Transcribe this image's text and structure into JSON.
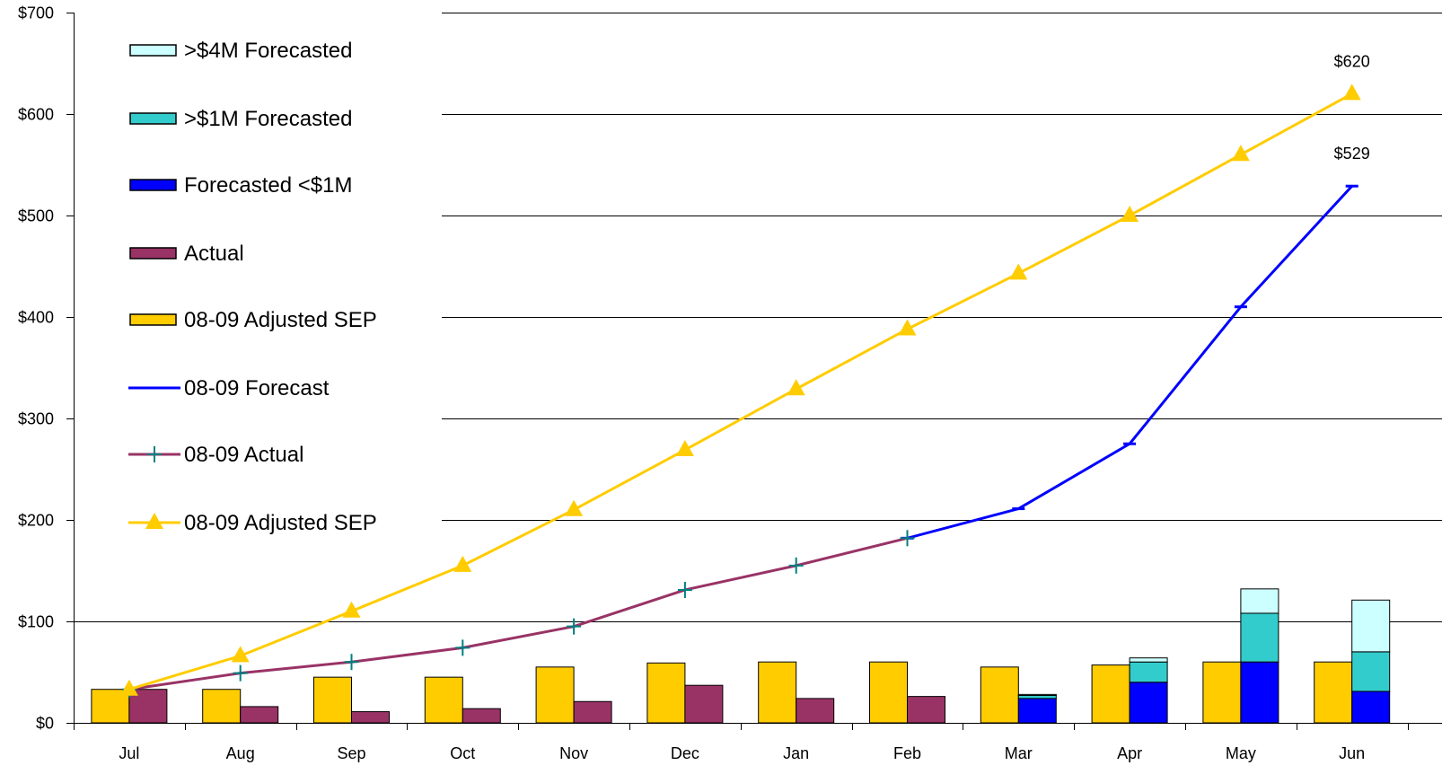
{
  "chart_data": {
    "type": "bar+line",
    "categories": [
      "Jul",
      "Aug",
      "Sep",
      "Oct",
      "Nov",
      "Dec",
      "Jan",
      "Feb",
      "Mar",
      "Apr",
      "May",
      "Jun"
    ],
    "ylim": [
      0,
      700
    ],
    "yticks": [
      "$0",
      "$100",
      "$200",
      "$300",
      "$400",
      "$500",
      "$600",
      "$700"
    ],
    "grid": true,
    "legend_position": "top-left",
    "bar_series": [
      {
        "name": "08-09 Adjusted SEP",
        "color": "#FFCC00",
        "values": [
          33,
          33,
          45,
          45,
          55,
          59,
          60,
          60,
          55,
          57,
          60,
          60
        ]
      }
    ],
    "stacked_series": [
      {
        "name": "Actual",
        "color": "#993366",
        "values": [
          33,
          16,
          11,
          14,
          21,
          37,
          24,
          26,
          0,
          0,
          0,
          0
        ]
      },
      {
        "name": "Forecasted <$1M",
        "color": "#0000FF",
        "values": [
          0,
          0,
          0,
          0,
          0,
          0,
          0,
          0,
          24,
          40,
          60,
          31
        ]
      },
      {
        "name": ">$1M Forecasted",
        "color": "#33CCCC",
        "values": [
          0,
          0,
          0,
          0,
          0,
          0,
          0,
          0,
          3,
          20,
          48,
          39
        ]
      },
      {
        "name": ">$4M Forecasted",
        "color": "#CCFFFF",
        "values": [
          0,
          0,
          0,
          0,
          0,
          0,
          0,
          0,
          1,
          4,
          24,
          51
        ]
      }
    ],
    "line_series": [
      {
        "name": "08-09 Adjusted SEP",
        "color": "#FFCC00",
        "marker": "triangle",
        "values": [
          33,
          66,
          110,
          155,
          210,
          269,
          329,
          388,
          443,
          500,
          560,
          620
        ]
      },
      {
        "name": "08-09 Actual",
        "color": "#993366",
        "marker": "plus",
        "values": [
          33,
          49,
          60,
          74,
          95,
          131,
          155,
          182,
          null,
          null,
          null,
          null
        ]
      },
      {
        "name": "08-09 Forecast",
        "color": "#0000FF",
        "marker": "dash",
        "values": [
          null,
          null,
          null,
          null,
          null,
          null,
          null,
          182,
          211,
          275,
          410,
          529
        ]
      }
    ],
    "data_labels": [
      {
        "series": "08-09 Adjusted SEP",
        "category": "Jun",
        "text": "$620"
      },
      {
        "series": "08-09 Forecast",
        "category": "Jun",
        "text": "$529"
      }
    ],
    "legend": [
      {
        "label": ">$4M Forecasted",
        "kind": "box",
        "color": "#CCFFFF"
      },
      {
        "label": ">$1M Forecasted",
        "kind": "box",
        "color": "#33CCCC"
      },
      {
        "label": "Forecasted <$1M",
        "kind": "box",
        "color": "#0000FF"
      },
      {
        "label": "Actual",
        "kind": "box",
        "color": "#993366"
      },
      {
        "label": "08-09 Adjusted SEP",
        "kind": "box",
        "color": "#FFCC00"
      },
      {
        "label": "08-09 Forecast",
        "kind": "line",
        "color": "#0000FF",
        "marker": "dash"
      },
      {
        "label": "08-09 Actual",
        "kind": "line",
        "color": "#993366",
        "marker": "plus",
        "marker_color": "#008080"
      },
      {
        "label": "08-09 Adjusted SEP",
        "kind": "line",
        "color": "#FFCC00",
        "marker": "triangle"
      }
    ]
  }
}
